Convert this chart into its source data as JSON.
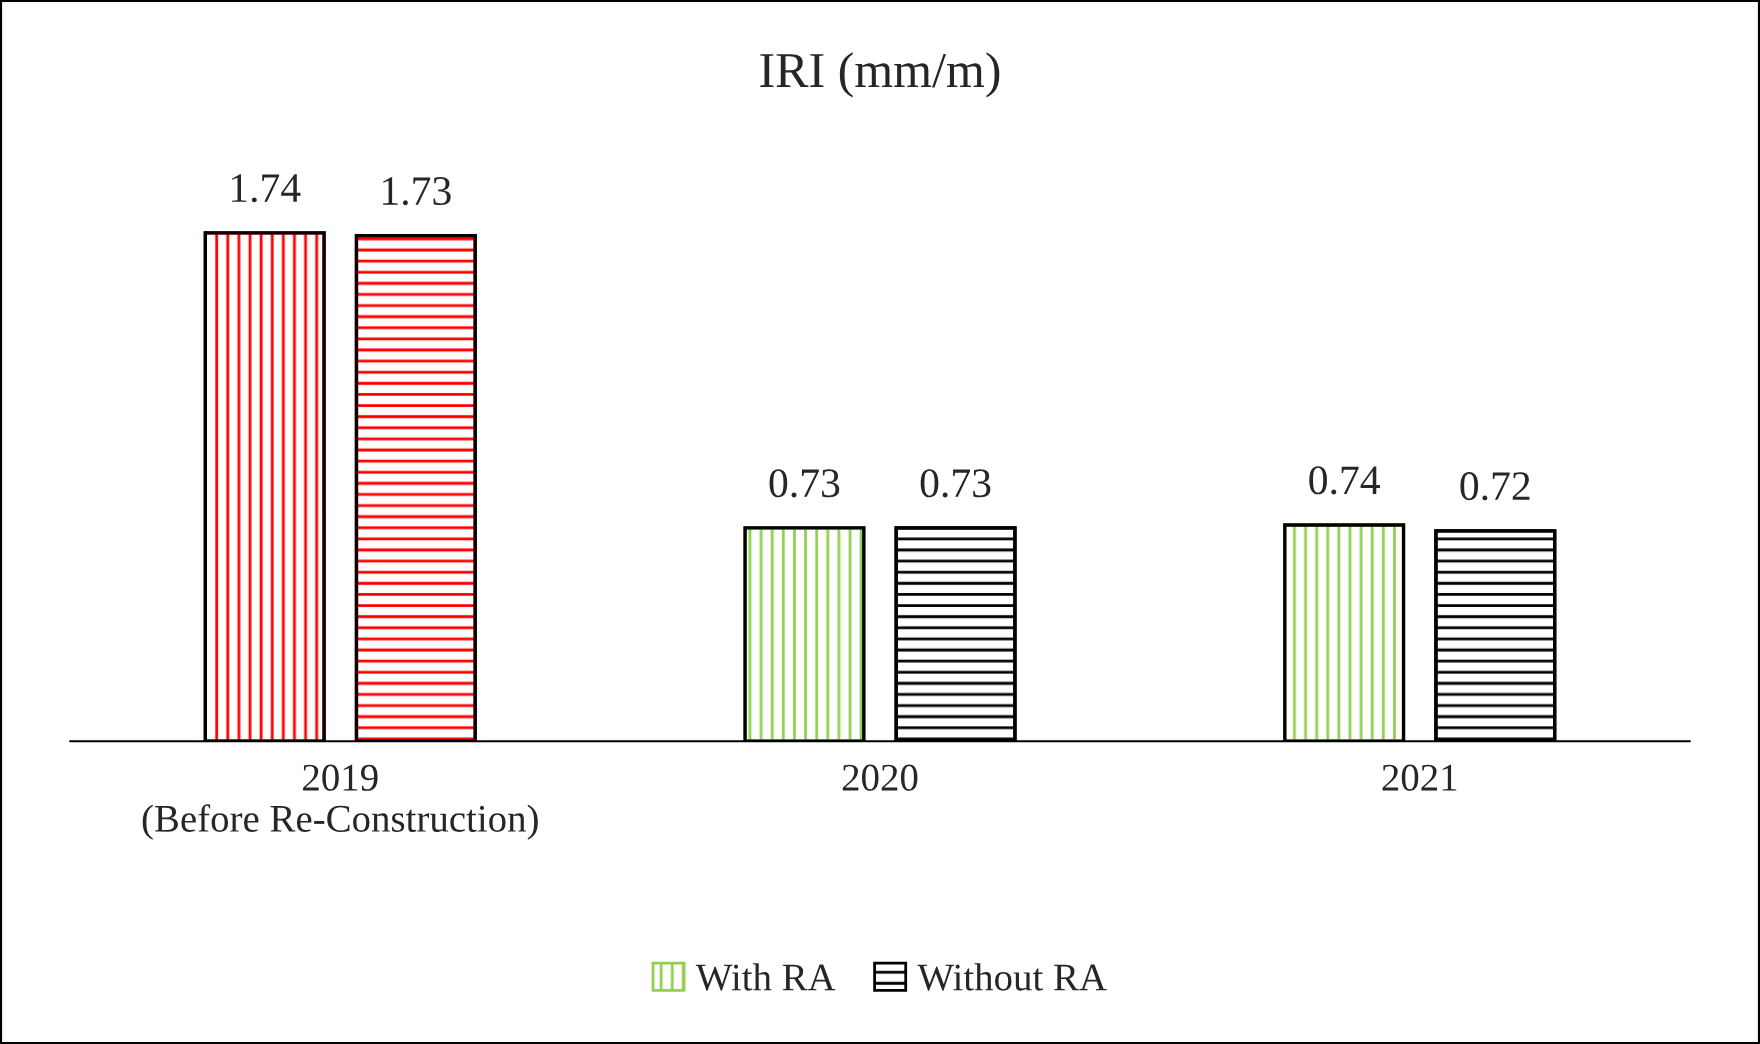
{
  "chart_data": {
    "type": "bar",
    "title": "IRI (mm/m)",
    "categories": [
      "2019\n(Before Re-Construction)",
      "2020",
      "2021"
    ],
    "series": [
      {
        "name": "With RA",
        "colors": [
          "#ff0000",
          "#92d050",
          "#92d050"
        ],
        "values": [
          1.74,
          0.73,
          0.74
        ]
      },
      {
        "name": "Without RA",
        "colors": [
          "#ff0000",
          "#000000",
          "#000000"
        ],
        "values": [
          1.73,
          0.73,
          0.72
        ]
      }
    ],
    "data_labels": true,
    "legend": "bottom",
    "grid": false
  }
}
